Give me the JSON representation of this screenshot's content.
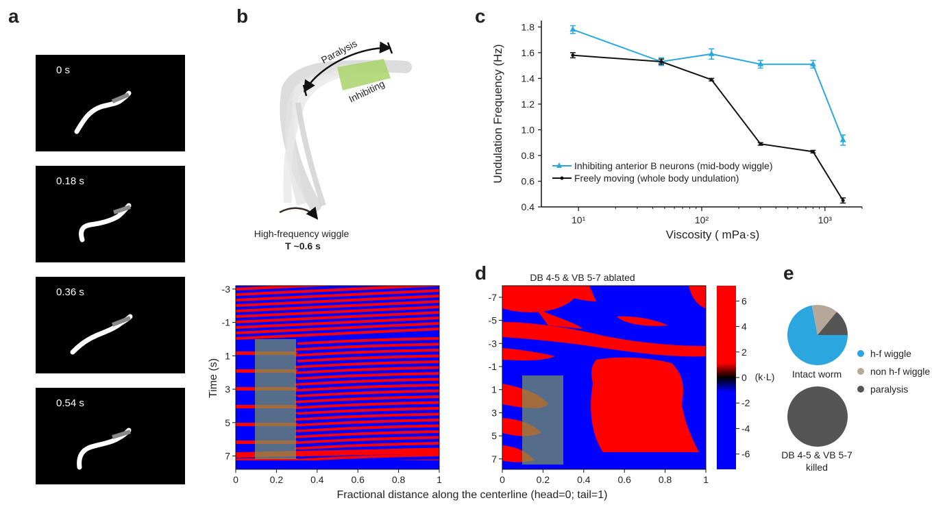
{
  "panels": {
    "a": "a",
    "b": "b",
    "c": "c",
    "d": "d",
    "e": "e"
  },
  "panel_a": {
    "frames": [
      "0 s",
      "0.18 s",
      "0.36 s",
      "0.54 s"
    ]
  },
  "panel_b": {
    "paralysis": "Paralysis",
    "inhibiting": "Inhibiting",
    "wiggle": "High-frequency wiggle",
    "period": "T ~0.6 s"
  },
  "kymo_left": {
    "ylabel": "Time (s)",
    "y_ticks": [
      "-3",
      "-1",
      "1",
      "3",
      "5",
      "7"
    ],
    "x_ticks": [
      "0",
      "0.2",
      "0.4",
      "0.6",
      "0.8",
      "1"
    ]
  },
  "kymo_right": {
    "title": "DB 4-5 & VB 5-7 ablated",
    "y_ticks": [
      "-7",
      "-5",
      "-3",
      "-1",
      "1",
      "3",
      "5",
      "7"
    ],
    "x_ticks": [
      "0",
      "0.2",
      "0.4",
      "0.6",
      "0.8",
      "1"
    ],
    "colorbar_ticks": [
      "6",
      "4",
      "2",
      "0",
      "-2",
      "-4",
      "-6"
    ],
    "colorbar_unit": "(k·L)"
  },
  "shared_xlabel": "Fractional distance along the centerline (head=0; tail=1)",
  "colors": {
    "blue_line": "#29a8e0",
    "black_line": "#111111",
    "kymo_red": "#ff0000",
    "kymo_blue": "#0000ff",
    "inhibit_green": "#8cc850"
  },
  "chart_data": [
    {
      "type": "line",
      "xscale": "log",
      "xlabel": "Viscosity ( mPa·s)",
      "ylabel": "Undulation Frequency (Hz)",
      "x_tick_labels": [
        "10¹",
        "10²",
        "10³"
      ],
      "y_tick_labels": [
        "0.4",
        "0.6",
        "0.8",
        "1.0",
        "1.2",
        "1.4",
        "1.6",
        "1.8"
      ],
      "ylim": [
        0.4,
        1.85
      ],
      "xlim": [
        5,
        2000
      ],
      "legend_position": "lower-left",
      "series": [
        {
          "name": "Inhibiting anterior B neurons (mid-body wiggle)",
          "color": "#29a8e0",
          "marker": "triangle",
          "x": [
            9,
            47,
            120,
            300,
            800,
            1400
          ],
          "values": [
            1.78,
            1.53,
            1.59,
            1.51,
            1.51,
            0.92
          ],
          "errors": [
            0.03,
            0.03,
            0.04,
            0.03,
            0.03,
            0.04
          ]
        },
        {
          "name": "Freely moving (whole body undulation)",
          "color": "#111111",
          "marker": "dot",
          "x": [
            9,
            47,
            120,
            300,
            800,
            1400
          ],
          "values": [
            1.58,
            1.53,
            1.39,
            0.89,
            0.83,
            0.45
          ],
          "errors": [
            0.02,
            0.02,
            0.01,
            0.01,
            0.01,
            0.02
          ]
        }
      ]
    },
    {
      "type": "pie",
      "label": "Intact worm",
      "slices": [
        {
          "name": "h-f wiggle",
          "value": 0.72,
          "color": "#2ba6df"
        },
        {
          "name": "non h-f wiggle",
          "value": 0.14,
          "color": "#b5a898"
        },
        {
          "name": "paralysis",
          "value": 0.14,
          "color": "#555555"
        }
      ]
    },
    {
      "type": "pie",
      "label": "DB 4-5 & VB 5-7\nkilled",
      "slices": [
        {
          "name": "paralysis",
          "value": 1.0,
          "color": "#555555"
        }
      ]
    }
  ]
}
